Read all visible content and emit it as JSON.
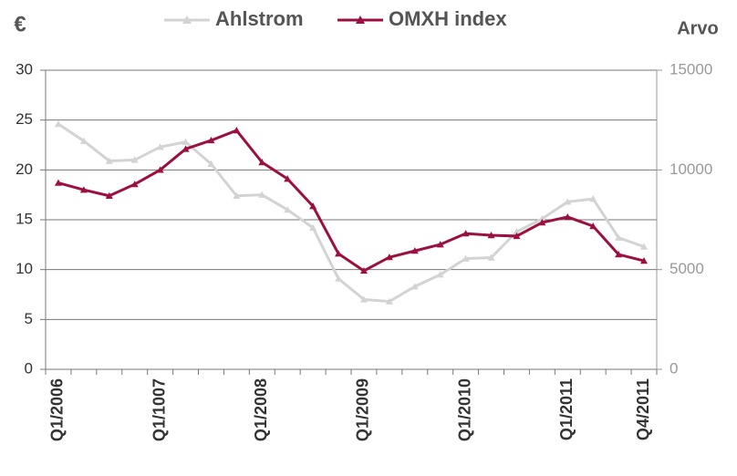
{
  "chart_data": {
    "type": "line",
    "y_label": "€",
    "y2_label": "Arvo",
    "categories": [
      "Q1/2006",
      null,
      null,
      null,
      "Q1/1007",
      null,
      null,
      null,
      "Q1/2008",
      null,
      null,
      null,
      "Q1/2009",
      null,
      null,
      null,
      "Q1/2010",
      null,
      null,
      null,
      "Q1/2011",
      null,
      null,
      "Q4/2011"
    ],
    "series": [
      {
        "name": "Ahlstrom",
        "color": "#d3d3d3",
        "values": [
          24.6,
          22.9,
          20.9,
          21.0,
          22.3,
          22.8,
          20.6,
          17.4,
          17.5,
          16.0,
          14.2,
          9.1,
          7.0,
          6.8,
          8.3,
          9.5,
          11.1,
          11.2,
          13.8,
          15.1,
          16.8,
          17.1,
          13.2,
          12.3
        ]
      },
      {
        "name": "OMXH index",
        "color": "#9b1040",
        "axis": "y2",
        "values": [
          9350,
          9000,
          8700,
          9280,
          10000,
          11050,
          11480,
          11980,
          10380,
          9550,
          8180,
          5800,
          4940,
          5620,
          5940,
          6260,
          6810,
          6720,
          6680,
          7360,
          7640,
          7180,
          5760,
          5440
        ]
      }
    ],
    "ylim": [
      0,
      30
    ],
    "yticks": [
      0,
      5,
      10,
      15,
      20,
      25,
      30
    ],
    "y2lim": [
      0,
      15000
    ],
    "y2ticks": [
      0,
      5000,
      10000,
      15000
    ],
    "grid": true
  }
}
